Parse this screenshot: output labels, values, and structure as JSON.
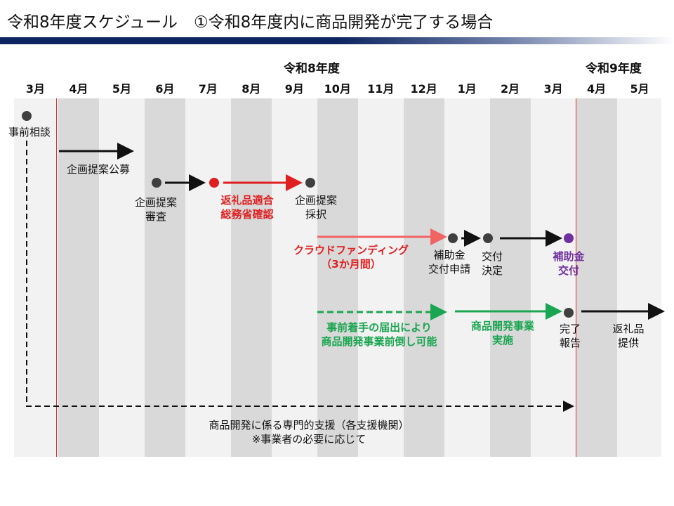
{
  "title": "令和8年度スケジュール　①令和8年度内に商品開発が完了する場合",
  "fiscal_years": [
    "令和8年度",
    "令和9年度"
  ],
  "months": [
    "3月",
    "4月",
    "5月",
    "6月",
    "7月",
    "8月",
    "9月",
    "10月",
    "11月",
    "12月",
    "1月",
    "2月",
    "3月",
    "4月",
    "5月"
  ],
  "colors": {
    "red": "#e02020",
    "pink": "#f06464",
    "green": "#1aa550",
    "purple": "#7030a0",
    "dot": "#404040",
    "title_bar": "#0c2460"
  },
  "steps": {
    "consult": "事前相談",
    "public_call": "企画提案公募",
    "review": [
      "企画提案",
      "審査"
    ],
    "mic_check": [
      "返礼品適合",
      "総務省確認"
    ],
    "adoption": [
      "企画提案",
      "採択"
    ],
    "crowdfunding": [
      "クラウドファンディング",
      "（3か月間）"
    ],
    "grant_apply": [
      "補助金",
      "交付申請"
    ],
    "grant_decision": [
      "交付",
      "決定"
    ],
    "grant_payment": [
      "補助金",
      "交付"
    ],
    "early_start": [
      "事前着手の届出により",
      "商品開発事業前倒し可能"
    ],
    "development": [
      "商品開発事業",
      "実施"
    ],
    "completion": [
      "完了",
      "報告"
    ],
    "gift_supply": [
      "返礼品",
      "提供"
    ],
    "support": [
      "商品開発に係る専門的支援（各支援機関）",
      "※事業者の必要に応じて"
    ]
  }
}
